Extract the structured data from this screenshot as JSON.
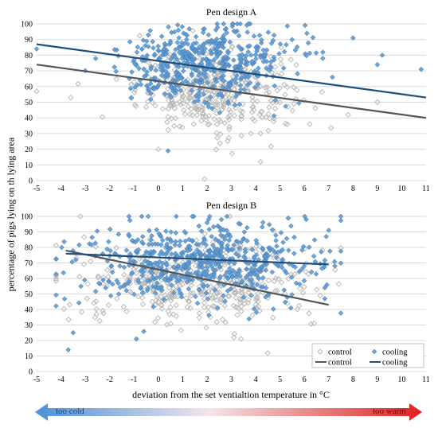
{
  "ylabel": "percentage of pigs lying on th lying area",
  "xlabel": "deviation from the set ventialtion temperature in °C",
  "scale_arrow": {
    "left_label": "too cold",
    "right_label": "too warm",
    "left_color": "#4a90d9",
    "mid_color": "#f2e6ea",
    "right_color": "#e0201c"
  },
  "chart_data": [
    {
      "type": "scatter",
      "title": "Pen design A",
      "xlim": [
        -5,
        11
      ],
      "ylim": [
        0,
        100
      ],
      "xticks": [
        -5,
        -4,
        -3,
        -2,
        -1,
        0,
        1,
        2,
        3,
        4,
        5,
        6,
        7,
        8,
        9,
        10,
        11
      ],
      "yticks": [
        0,
        10,
        20,
        30,
        40,
        50,
        60,
        70,
        80,
        90,
        100
      ],
      "grid": "horizontal",
      "series": [
        {
          "name": "control",
          "kind": "points",
          "marker": "hollow-diamond",
          "color": "#b4b4b4",
          "cloud": {
            "x_center": 2.3,
            "x_spread": 1.6,
            "y_center": 57,
            "y_spread": 13,
            "count": 380,
            "outliers": [
              [
                -5,
                57
              ],
              [
                0,
                20
              ],
              [
                1.9,
                1
              ],
              [
                4.2,
                12
              ],
              [
                9,
                50
              ],
              [
                -3.6,
                53
              ],
              [
                7.8,
                42
              ]
            ]
          }
        },
        {
          "name": "cooling",
          "kind": "points",
          "marker": "filled-diamond",
          "color": "#5b9bd5",
          "cloud": {
            "x_center": 1.9,
            "x_spread": 1.8,
            "y_center": 75,
            "y_spread": 12,
            "count": 520,
            "outliers": [
              [
                -5,
                84
              ],
              [
                8,
                91
              ],
              [
                9,
                74
              ],
              [
                10.8,
                71
              ],
              [
                0.4,
                19
              ],
              [
                9.2,
                80
              ]
            ]
          }
        },
        {
          "name": "control",
          "kind": "trendline",
          "color": "#555555",
          "x": [
            -5,
            11
          ],
          "y": [
            74,
            40
          ]
        },
        {
          "name": "cooling",
          "kind": "trendline",
          "color": "#1f4e79",
          "x": [
            -5,
            11
          ],
          "y": [
            87,
            53
          ]
        }
      ]
    },
    {
      "type": "scatter",
      "title": "Pen design B",
      "xlim": [
        -5,
        11
      ],
      "ylim": [
        0,
        100
      ],
      "xticks": [
        -5,
        -4,
        -3,
        -2,
        -1,
        0,
        1,
        2,
        3,
        4,
        5,
        6,
        7,
        8,
        9,
        10,
        11
      ],
      "yticks": [
        0,
        10,
        20,
        30,
        40,
        50,
        60,
        70,
        80,
        90,
        100
      ],
      "grid": "horizontal",
      "legend": "bottom-right",
      "series": [
        {
          "name": "control",
          "kind": "points",
          "marker": "hollow-diamond",
          "color": "#b4b4b4",
          "cloud": {
            "x_center": 1.5,
            "x_spread": 2.4,
            "y_center": 58,
            "y_spread": 13,
            "count": 420,
            "outliers": [
              [
                -3.2,
                100
              ],
              [
                3.1,
                22
              ],
              [
                3.4,
                21
              ],
              [
                6.4,
                31
              ],
              [
                5.3,
                44
              ]
            ]
          }
        },
        {
          "name": "cooling",
          "kind": "points",
          "marker": "filled-diamond",
          "color": "#5b9bd5",
          "cloud": {
            "x_center": 1.6,
            "x_spread": 2.5,
            "y_center": 70,
            "y_spread": 13,
            "count": 600,
            "outliers": [
              [
                -3.7,
                14
              ],
              [
                -3.5,
                25
              ],
              [
                -0.9,
                21
              ],
              [
                7,
                91
              ],
              [
                6.9,
                87
              ]
            ]
          }
        },
        {
          "name": "control",
          "kind": "trendline",
          "color": "#555555",
          "x": [
            -3.8,
            7
          ],
          "y": [
            78,
            43
          ]
        },
        {
          "name": "cooling",
          "kind": "trendline",
          "color": "#1f4e79",
          "x": [
            -3.8,
            7
          ],
          "y": [
            76,
            69
          ]
        }
      ]
    }
  ]
}
